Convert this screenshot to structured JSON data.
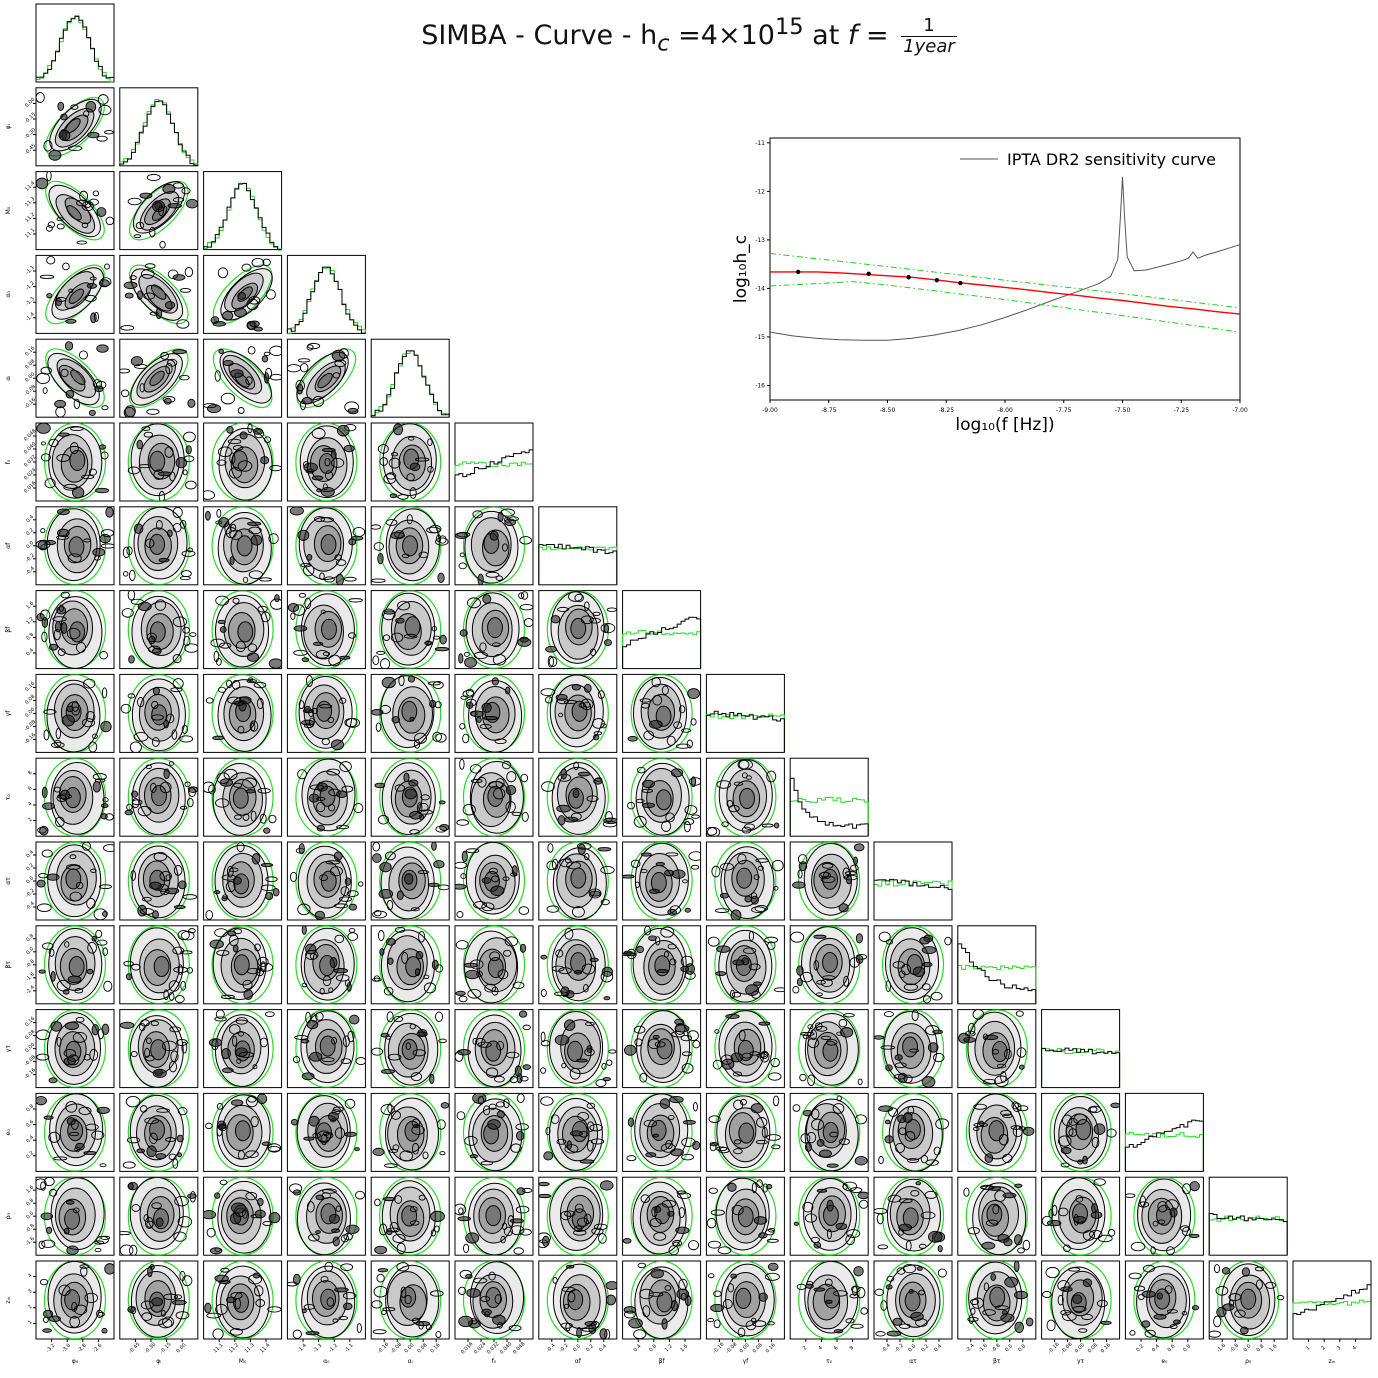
{
  "title": {
    "prefix": "SIMBA - Curve - h",
    "sub": "c",
    "mid": " =4×10",
    "sup": "15",
    "at": " at ",
    "f": "f",
    "eq": " = ",
    "frac_num": "1",
    "frac_den": "1year"
  },
  "corner": {
    "parameters": [
      {
        "label": "φ₀",
        "ticks": [
          "-3.2",
          "-3.0",
          "-2.8",
          "-2.6"
        ],
        "range": [
          -3.3,
          -2.5
        ]
      },
      {
        "label": "φᵢ",
        "ticks": [
          "-0.45",
          "-0.30",
          "-0.15",
          "0.00"
        ],
        "range": [
          -0.55,
          0.05
        ]
      },
      {
        "label": "M₀",
        "ticks": [
          "11.1",
          "11.2",
          "11.3",
          "11.4"
        ],
        "range": [
          11.05,
          11.5
        ]
      },
      {
        "label": "α₀",
        "ticks": [
          "-1.4",
          "-1.3",
          "-1.2",
          "-1.1"
        ],
        "range": [
          -1.45,
          -1.0
        ]
      },
      {
        "label": "αᵢ",
        "ticks": [
          "-0.16",
          "-0.08",
          "0.00",
          "0.08",
          "0.16"
        ],
        "range": [
          -0.2,
          0.2
        ]
      },
      {
        "label": "f₀",
        "ticks": [
          "0.016",
          "0.024",
          "0.032",
          "0.040",
          "0.048"
        ],
        "range": [
          0.01,
          0.05
        ]
      },
      {
        "label": "αf",
        "ticks": [
          "-0.4",
          "-0.2",
          "0.0",
          "0.2",
          "0.4"
        ],
        "range": [
          -0.5,
          0.5
        ]
      },
      {
        "label": "βf",
        "ticks": [
          "0.4",
          "0.8",
          "1.2",
          "1.6"
        ],
        "range": [
          0.0,
          2.0
        ]
      },
      {
        "label": "γf",
        "ticks": [
          "-0.16",
          "-0.08",
          "0.00",
          "0.08",
          "0.16"
        ],
        "range": [
          -0.2,
          0.2
        ]
      },
      {
        "label": "τ₀",
        "ticks": [
          "2",
          "4",
          "6",
          "8"
        ],
        "range": [
          0.1,
          10.0
        ]
      },
      {
        "label": "ατ",
        "ticks": [
          "-0.4",
          "-0.2",
          "0.0",
          "0.2",
          "0.4"
        ],
        "range": [
          -0.5,
          0.5
        ]
      },
      {
        "label": "βτ",
        "ticks": [
          "-2.4",
          "-1.6",
          "-0.8",
          "0.0",
          "0.8"
        ],
        "range": [
          -3.0,
          1.0
        ]
      },
      {
        "label": "γτ",
        "ticks": [
          "-0.16",
          "-0.08",
          "0.00",
          "0.08",
          "0.16"
        ],
        "range": [
          -0.2,
          0.2
        ]
      },
      {
        "label": "e₀",
        "ticks": [
          "0.2",
          "0.4",
          "0.6",
          "0.8"
        ],
        "range": [
          0.01,
          0.99
        ]
      },
      {
        "label": "ρ₀",
        "ticks": [
          "-1.6",
          "-0.8",
          "0.0",
          "0.8",
          "1.6"
        ],
        "range": [
          -2.0,
          2.0
        ]
      },
      {
        "label": "zₘ",
        "ticks": [
          "1",
          "2",
          "3",
          "4"
        ],
        "range": [
          0.5,
          5.0
        ]
      }
    ],
    "colors": {
      "posterior": "#000000",
      "prior": "#22dd22",
      "density": "#555555"
    }
  },
  "chart_data": {
    "type": "line",
    "xlabel": "log₁₀(f [Hz])",
    "ylabel": "log₁₀h_c",
    "xlim": [
      -9.0,
      -7.0
    ],
    "ylim": [
      -16.3,
      -10.9
    ],
    "xticks": [
      "-9.00",
      "-8.75",
      "-8.50",
      "-8.25",
      "-8.00",
      "-7.75",
      "-7.50",
      "-7.25",
      "-7.00"
    ],
    "yticks": [
      "-11",
      "-12",
      "-13",
      "-14",
      "-15",
      "-16"
    ],
    "legend_position": "top-right",
    "series": [
      {
        "name": "IPTA DR2 sensitivity curve",
        "color": "#555555",
        "x": [
          -9.0,
          -8.9,
          -8.8,
          -8.7,
          -8.6,
          -8.5,
          -8.4,
          -8.3,
          -8.2,
          -8.1,
          -8.0,
          -7.9,
          -7.8,
          -7.7,
          -7.6,
          -7.55,
          -7.52,
          -7.51,
          -7.5,
          -7.49,
          -7.48,
          -7.45,
          -7.4,
          -7.3,
          -7.25,
          -7.22,
          -7.2,
          -7.18,
          -7.15,
          -7.1,
          -7.0
        ],
        "y": [
          -14.9,
          -14.98,
          -15.03,
          -15.06,
          -15.07,
          -15.07,
          -15.03,
          -14.96,
          -14.87,
          -14.75,
          -14.6,
          -14.43,
          -14.25,
          -14.08,
          -13.9,
          -13.75,
          -13.4,
          -12.6,
          -11.7,
          -12.6,
          -13.35,
          -13.64,
          -13.62,
          -13.5,
          -13.43,
          -13.38,
          -13.25,
          -13.38,
          -13.32,
          -13.25,
          -13.1
        ]
      },
      {
        "color": "#ff0000",
        "x": [
          -9.0,
          -8.9,
          -8.8,
          -8.7,
          -8.6,
          -8.5,
          -8.4,
          -8.3,
          -8.2,
          -8.1,
          -8.0,
          -7.9,
          -7.8,
          -7.7,
          -7.6,
          -7.5,
          -7.4,
          -7.3,
          -7.2,
          -7.1,
          -7.0
        ],
        "y": [
          -13.66,
          -13.66,
          -13.66,
          -13.68,
          -13.71,
          -13.74,
          -13.77,
          -13.82,
          -13.88,
          -13.93,
          -13.98,
          -14.03,
          -14.09,
          -14.14,
          -14.2,
          -14.25,
          -14.31,
          -14.37,
          -14.42,
          -14.48,
          -14.53
        ]
      },
      {
        "color": "#22cc22",
        "dash": true,
        "x": [
          -9.0,
          -8.5,
          -8.0,
          -7.5,
          -7.0
        ],
        "y": [
          -13.28,
          -13.55,
          -13.83,
          -14.11,
          -14.4
        ]
      },
      {
        "color": "#22cc22",
        "dash": true,
        "x": [
          -9.0,
          -8.8,
          -8.65,
          -8.5,
          -8.3,
          -8.0,
          -7.5,
          -7.0
        ],
        "y": [
          -13.95,
          -13.9,
          -13.86,
          -13.93,
          -14.05,
          -14.23,
          -14.56,
          -14.9
        ]
      }
    ],
    "points": {
      "x": [
        -8.88,
        -8.58,
        -8.41,
        -8.29,
        -8.19
      ],
      "y": [
        -13.66,
        -13.7,
        -13.77,
        -13.83,
        -13.89
      ]
    }
  }
}
